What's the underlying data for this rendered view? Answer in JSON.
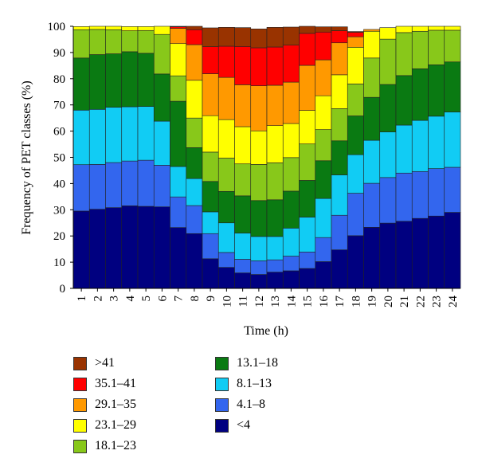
{
  "chart_data": {
    "type": "stacked-bar",
    "xlabel": "Time (h)",
    "ylabel": "Frequency of PET classes (%)",
    "ylim": [
      0,
      100
    ],
    "yticks": [
      0,
      10,
      20,
      30,
      40,
      50,
      60,
      70,
      80,
      90,
      100
    ],
    "categories": [
      "1",
      "2",
      "3",
      "4",
      "5",
      "6",
      "7",
      "8",
      "9",
      "10",
      "11",
      "12",
      "13",
      "14",
      "15",
      "16",
      "17",
      "18",
      "19",
      "20",
      "21",
      "22",
      "23",
      "24"
    ],
    "legend_position": "bottom",
    "series": [
      {
        "name": "<4",
        "color": "#000080",
        "values": [
          29.5,
          30.2,
          30.8,
          31.5,
          31.3,
          31.1,
          23.2,
          20.9,
          11.3,
          8.0,
          5.9,
          5.3,
          6.2,
          6.7,
          7.6,
          10.2,
          14.7,
          20.1,
          23.3,
          24.9,
          25.6,
          26.7,
          27.6,
          29.0
        ]
      },
      {
        "name": "4.1–8",
        "color": "#3366ee",
        "values": [
          17.7,
          17.1,
          17.2,
          17.1,
          17.6,
          15.9,
          11.7,
          10.7,
          9.6,
          5.7,
          5.2,
          5.2,
          4.7,
          5.6,
          6.3,
          9.2,
          13.2,
          16.2,
          16.8,
          17.4,
          18.4,
          17.9,
          18.1,
          17.2
        ]
      },
      {
        "name": "8.1–13",
        "color": "#11ccf4",
        "values": [
          20.8,
          21.0,
          21.1,
          20.7,
          20.5,
          16.8,
          11.6,
          10.3,
          8.3,
          11.3,
          10.0,
          9.3,
          8.9,
          10.7,
          13.3,
          14.9,
          15.4,
          14.7,
          16.4,
          17.4,
          18.3,
          19.5,
          20.0,
          21.1
        ]
      },
      {
        "name": "13.1–18",
        "color": "#0a7a12",
        "values": [
          19.9,
          20.9,
          20.4,
          21.0,
          20.3,
          18.0,
          24.9,
          11.8,
          11.6,
          12.0,
          14.2,
          13.7,
          14.0,
          14.1,
          14.0,
          14.4,
          13.0,
          14.8,
          16.4,
          18.1,
          18.9,
          19.7,
          19.6,
          19.1
        ]
      },
      {
        "name": "18.1–23",
        "color": "#88c81a",
        "values": [
          10.8,
          9.6,
          9.2,
          8.0,
          8.7,
          15.1,
          9.7,
          11.3,
          11.2,
          12.7,
          12.2,
          13.8,
          14.1,
          12.8,
          13.9,
          11.9,
          12.3,
          12.2,
          15.0,
          17.3,
          16.4,
          14.3,
          13.2,
          12.1
        ]
      },
      {
        "name": "23.1–29",
        "color": "#ffff00",
        "values": [
          1.2,
          1.2,
          1.3,
          1.6,
          1.5,
          3.1,
          12.3,
          14.4,
          13.9,
          14.7,
          14.2,
          12.8,
          14.2,
          13.0,
          12.8,
          12.9,
          12.9,
          14.0,
          10.2,
          4.4,
          2.4,
          1.9,
          1.5,
          1.5
        ]
      },
      {
        "name": "29.1–35",
        "color": "#ff9900",
        "values": [
          0,
          0,
          0,
          0,
          0,
          0,
          5.8,
          13.6,
          16.0,
          16.1,
          16.0,
          17.2,
          15.4,
          15.8,
          17.2,
          13.7,
          12.2,
          4.0,
          0.7,
          0,
          0,
          0,
          0,
          0
        ]
      },
      {
        "name": "35.1–41",
        "color": "#ff0000",
        "values": [
          0,
          0,
          0,
          0,
          0,
          0,
          0.6,
          5.7,
          10.3,
          11.9,
          14.6,
          14.5,
          14.6,
          14.1,
          12.2,
          10.6,
          4.6,
          1.7,
          0,
          0,
          0,
          0,
          0,
          0
        ]
      },
      {
        "name": ">41",
        "color": "#993300",
        "values": [
          0,
          0,
          0,
          0,
          0,
          0,
          0.2,
          1.3,
          7.2,
          7.2,
          7.2,
          7.2,
          7.5,
          6.9,
          5.0,
          2.0,
          1.5,
          0.3,
          0,
          0,
          0,
          0,
          0,
          0
        ]
      }
    ]
  },
  "legend": {
    "order": [
      ">41",
      "35.1–41",
      "29.1–35",
      "23.1–29",
      "18.1–23",
      "13.1–18",
      "8.1–13",
      "4.1–8",
      "<4"
    ]
  }
}
